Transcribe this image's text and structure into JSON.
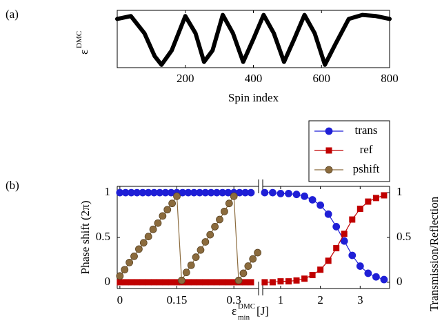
{
  "chart_data": [
    {
      "type": "line",
      "panel_label": "(a)",
      "xlabel": "Spin index",
      "ylabel": {
        "base": "ε",
        "sup": "DMC"
      },
      "color": "#000000",
      "x": [
        0,
        40,
        80,
        110,
        130,
        160,
        200,
        230,
        255,
        280,
        310,
        340,
        370,
        400,
        430,
        460,
        490,
        520,
        550,
        580,
        610,
        640,
        680,
        720,
        760,
        800
      ],
      "values": [
        0.85,
        0.9,
        0.6,
        0.2,
        0.05,
        0.3,
        0.9,
        0.6,
        0.1,
        0.3,
        0.92,
        0.6,
        0.1,
        0.5,
        0.92,
        0.6,
        0.1,
        0.5,
        0.92,
        0.6,
        0.05,
        0.4,
        0.85,
        0.92,
        0.9,
        0.85
      ],
      "xlim": [
        0,
        800
      ],
      "xticks": [
        200,
        400,
        600,
        800
      ],
      "ylim": [
        0,
        1
      ]
    },
    {
      "type": "broken-line",
      "panel_label": "(b)",
      "xlabel": {
        "base": "ε",
        "sup": "DMC",
        "sub": "min",
        "suffix": "[J]"
      },
      "ylabel": "Phase shift (2π)",
      "y2label": "Transmission/Reflection",
      "ylim": [
        -0.07,
        1.07
      ],
      "yticks": [
        0,
        0.5,
        1
      ],
      "y2lim": [
        -0.07,
        1.07
      ],
      "y2ticks": [
        0,
        0.5,
        1
      ],
      "legend": "top-right",
      "segments": [
        {
          "xlim": [
            -0.007,
            0.365
          ],
          "xticks": [
            0,
            0.15,
            0.3
          ]
        },
        {
          "xlim": [
            0.55,
            3.74
          ],
          "xticks": [
            1,
            2,
            3
          ]
        }
      ],
      "series": [
        {
          "name": "trans",
          "color": "#1f1fd6",
          "marker": "circle",
          "axis": "y2",
          "data": [
            {
              "x": [
                0,
                0.015,
                0.03,
                0.045,
                0.06,
                0.075,
                0.09,
                0.105,
                0.12,
                0.135,
                0.15,
                0.165,
                0.18,
                0.195,
                0.21,
                0.225,
                0.24,
                0.255,
                0.27,
                0.285,
                0.3,
                0.315,
                0.33,
                0.345
              ],
              "values": [
                1,
                1,
                1,
                1,
                1,
                1,
                1,
                1,
                1,
                1,
                1,
                1,
                1,
                1,
                1,
                1,
                1,
                1,
                1,
                1,
                1,
                1,
                1,
                1
              ]
            },
            {
              "x": [
                0.6,
                0.8,
                1.0,
                1.2,
                1.4,
                1.6,
                1.8,
                2.0,
                2.2,
                2.4,
                2.6,
                2.8,
                3.0,
                3.2,
                3.4,
                3.6
              ],
              "values": [
                1.0,
                1.0,
                0.99,
                0.99,
                0.98,
                0.96,
                0.92,
                0.86,
                0.76,
                0.62,
                0.46,
                0.3,
                0.18,
                0.1,
                0.06,
                0.03
              ]
            }
          ]
        },
        {
          "name": "ref",
          "color": "#c00000",
          "marker": "square",
          "axis": "y2",
          "data": [
            {
              "x": [
                0,
                0.015,
                0.03,
                0.045,
                0.06,
                0.075,
                0.09,
                0.105,
                0.12,
                0.135,
                0.15,
                0.165,
                0.18,
                0.195,
                0.21,
                0.225,
                0.24,
                0.255,
                0.27,
                0.285,
                0.3,
                0.315,
                0.33,
                0.345
              ],
              "values": [
                0,
                0,
                0,
                0,
                0,
                0,
                0,
                0,
                0,
                0,
                0,
                0,
                0,
                0,
                0,
                0,
                0,
                0,
                0,
                0,
                0,
                0,
                0,
                0
              ]
            },
            {
              "x": [
                0.6,
                0.8,
                1.0,
                1.2,
                1.4,
                1.6,
                1.8,
                2.0,
                2.2,
                2.4,
                2.6,
                2.8,
                3.0,
                3.2,
                3.4,
                3.6
              ],
              "values": [
                0,
                0,
                0.01,
                0.01,
                0.02,
                0.04,
                0.08,
                0.14,
                0.24,
                0.38,
                0.54,
                0.7,
                0.82,
                0.9,
                0.94,
                0.97
              ]
            }
          ]
        },
        {
          "name": "pshift",
          "color": "#8b6b3d",
          "marker": "circle",
          "axis": "y",
          "data": [
            {
              "x": [
                0,
                0.0125,
                0.025,
                0.0375,
                0.05,
                0.0625,
                0.075,
                0.0875,
                0.1,
                0.1125,
                0.125,
                0.1375,
                0.15,
                0.1625,
                0.175,
                0.1875,
                0.2,
                0.2125,
                0.225,
                0.2375,
                0.25,
                0.2625,
                0.275,
                0.2875,
                0.3,
                0.3125,
                0.325,
                0.3375,
                0.35,
                0.3625
              ],
              "values": [
                0.07,
                0.14,
                0.22,
                0.29,
                0.37,
                0.44,
                0.51,
                0.59,
                0.66,
                0.74,
                0.81,
                0.88,
                0.96,
                0.02,
                0.11,
                0.19,
                0.28,
                0.36,
                0.45,
                0.53,
                0.62,
                0.7,
                0.79,
                0.88,
                0.96,
                0.02,
                0.1,
                0.18,
                0.26,
                0.33
              ]
            }
          ]
        }
      ]
    }
  ]
}
